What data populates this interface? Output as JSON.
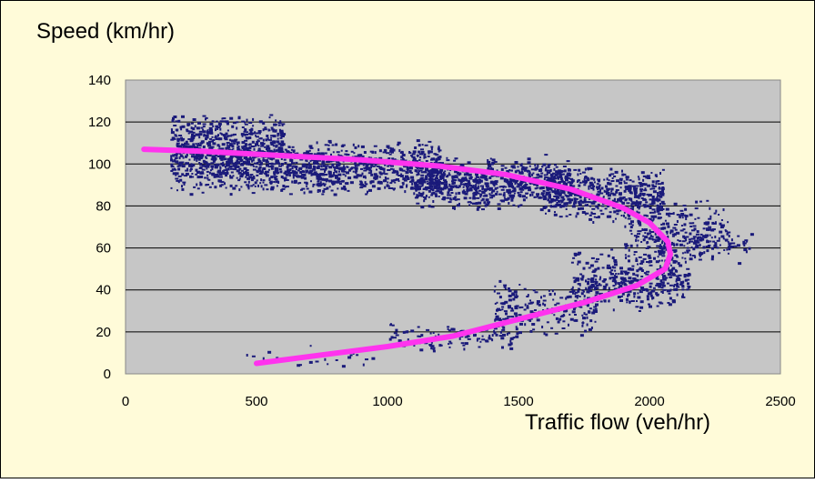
{
  "colors": {
    "background": "#fffbd9",
    "plot_area": "#c6c6c6",
    "gridline": "#000000",
    "points": "#1a1a7a",
    "curve": "#ff33ee"
  },
  "chart_data": {
    "type": "scatter",
    "title": "",
    "xlabel": "Traffic flow (veh/hr)",
    "ylabel": "Speed (km/hr)",
    "xlim": [
      0,
      2500
    ],
    "ylim": [
      0,
      140
    ],
    "x_ticks": [
      0,
      500,
      1000,
      1500,
      2000,
      2500
    ],
    "y_ticks": [
      0,
      20,
      40,
      60,
      80,
      100,
      120,
      140
    ],
    "grid": {
      "horizontal": true,
      "vertical": false
    },
    "legend": "none",
    "series": [
      {
        "kind": "points",
        "clusters": [
          {
            "x": [
              170,
              600
            ],
            "y": [
              85,
              125
            ],
            "n": 900
          },
          {
            "x": [
              600,
              1200
            ],
            "y": [
              85,
              112
            ],
            "n": 750
          },
          {
            "x": [
              1100,
              1700
            ],
            "y": [
              78,
              105
            ],
            "n": 800
          },
          {
            "x": [
              1600,
              2050
            ],
            "y": [
              72,
              100
            ],
            "n": 500
          },
          {
            "x": [
              1900,
              2300
            ],
            "y": [
              50,
              85
            ],
            "n": 250
          },
          {
            "x": [
              1980,
              2390
            ],
            "y": [
              52,
              72
            ],
            "n": 120
          },
          {
            "x": [
              1700,
              2150
            ],
            "y": [
              30,
              60
            ],
            "n": 400
          },
          {
            "x": [
              1400,
              1800
            ],
            "y": [
              18,
              45
            ],
            "n": 220
          },
          {
            "x": [
              1000,
              1500
            ],
            "y": [
              10,
              25
            ],
            "n": 120
          },
          {
            "x": [
              450,
              1000
            ],
            "y": [
              2,
              15
            ],
            "n": 30
          }
        ]
      },
      {
        "kind": "fitted_curve",
        "x": [
          70,
          300,
          600,
          900,
          1200,
          1450,
          1700,
          1900,
          2000,
          2070,
          2080,
          2060,
          1950,
          1750,
          1500,
          1250,
          1000,
          750,
          500
        ],
        "y": [
          107,
          106,
          104,
          102,
          99,
          95,
          88,
          79,
          72,
          63,
          57,
          50,
          42,
          34,
          26,
          18,
          13,
          9,
          5
        ]
      }
    ]
  }
}
